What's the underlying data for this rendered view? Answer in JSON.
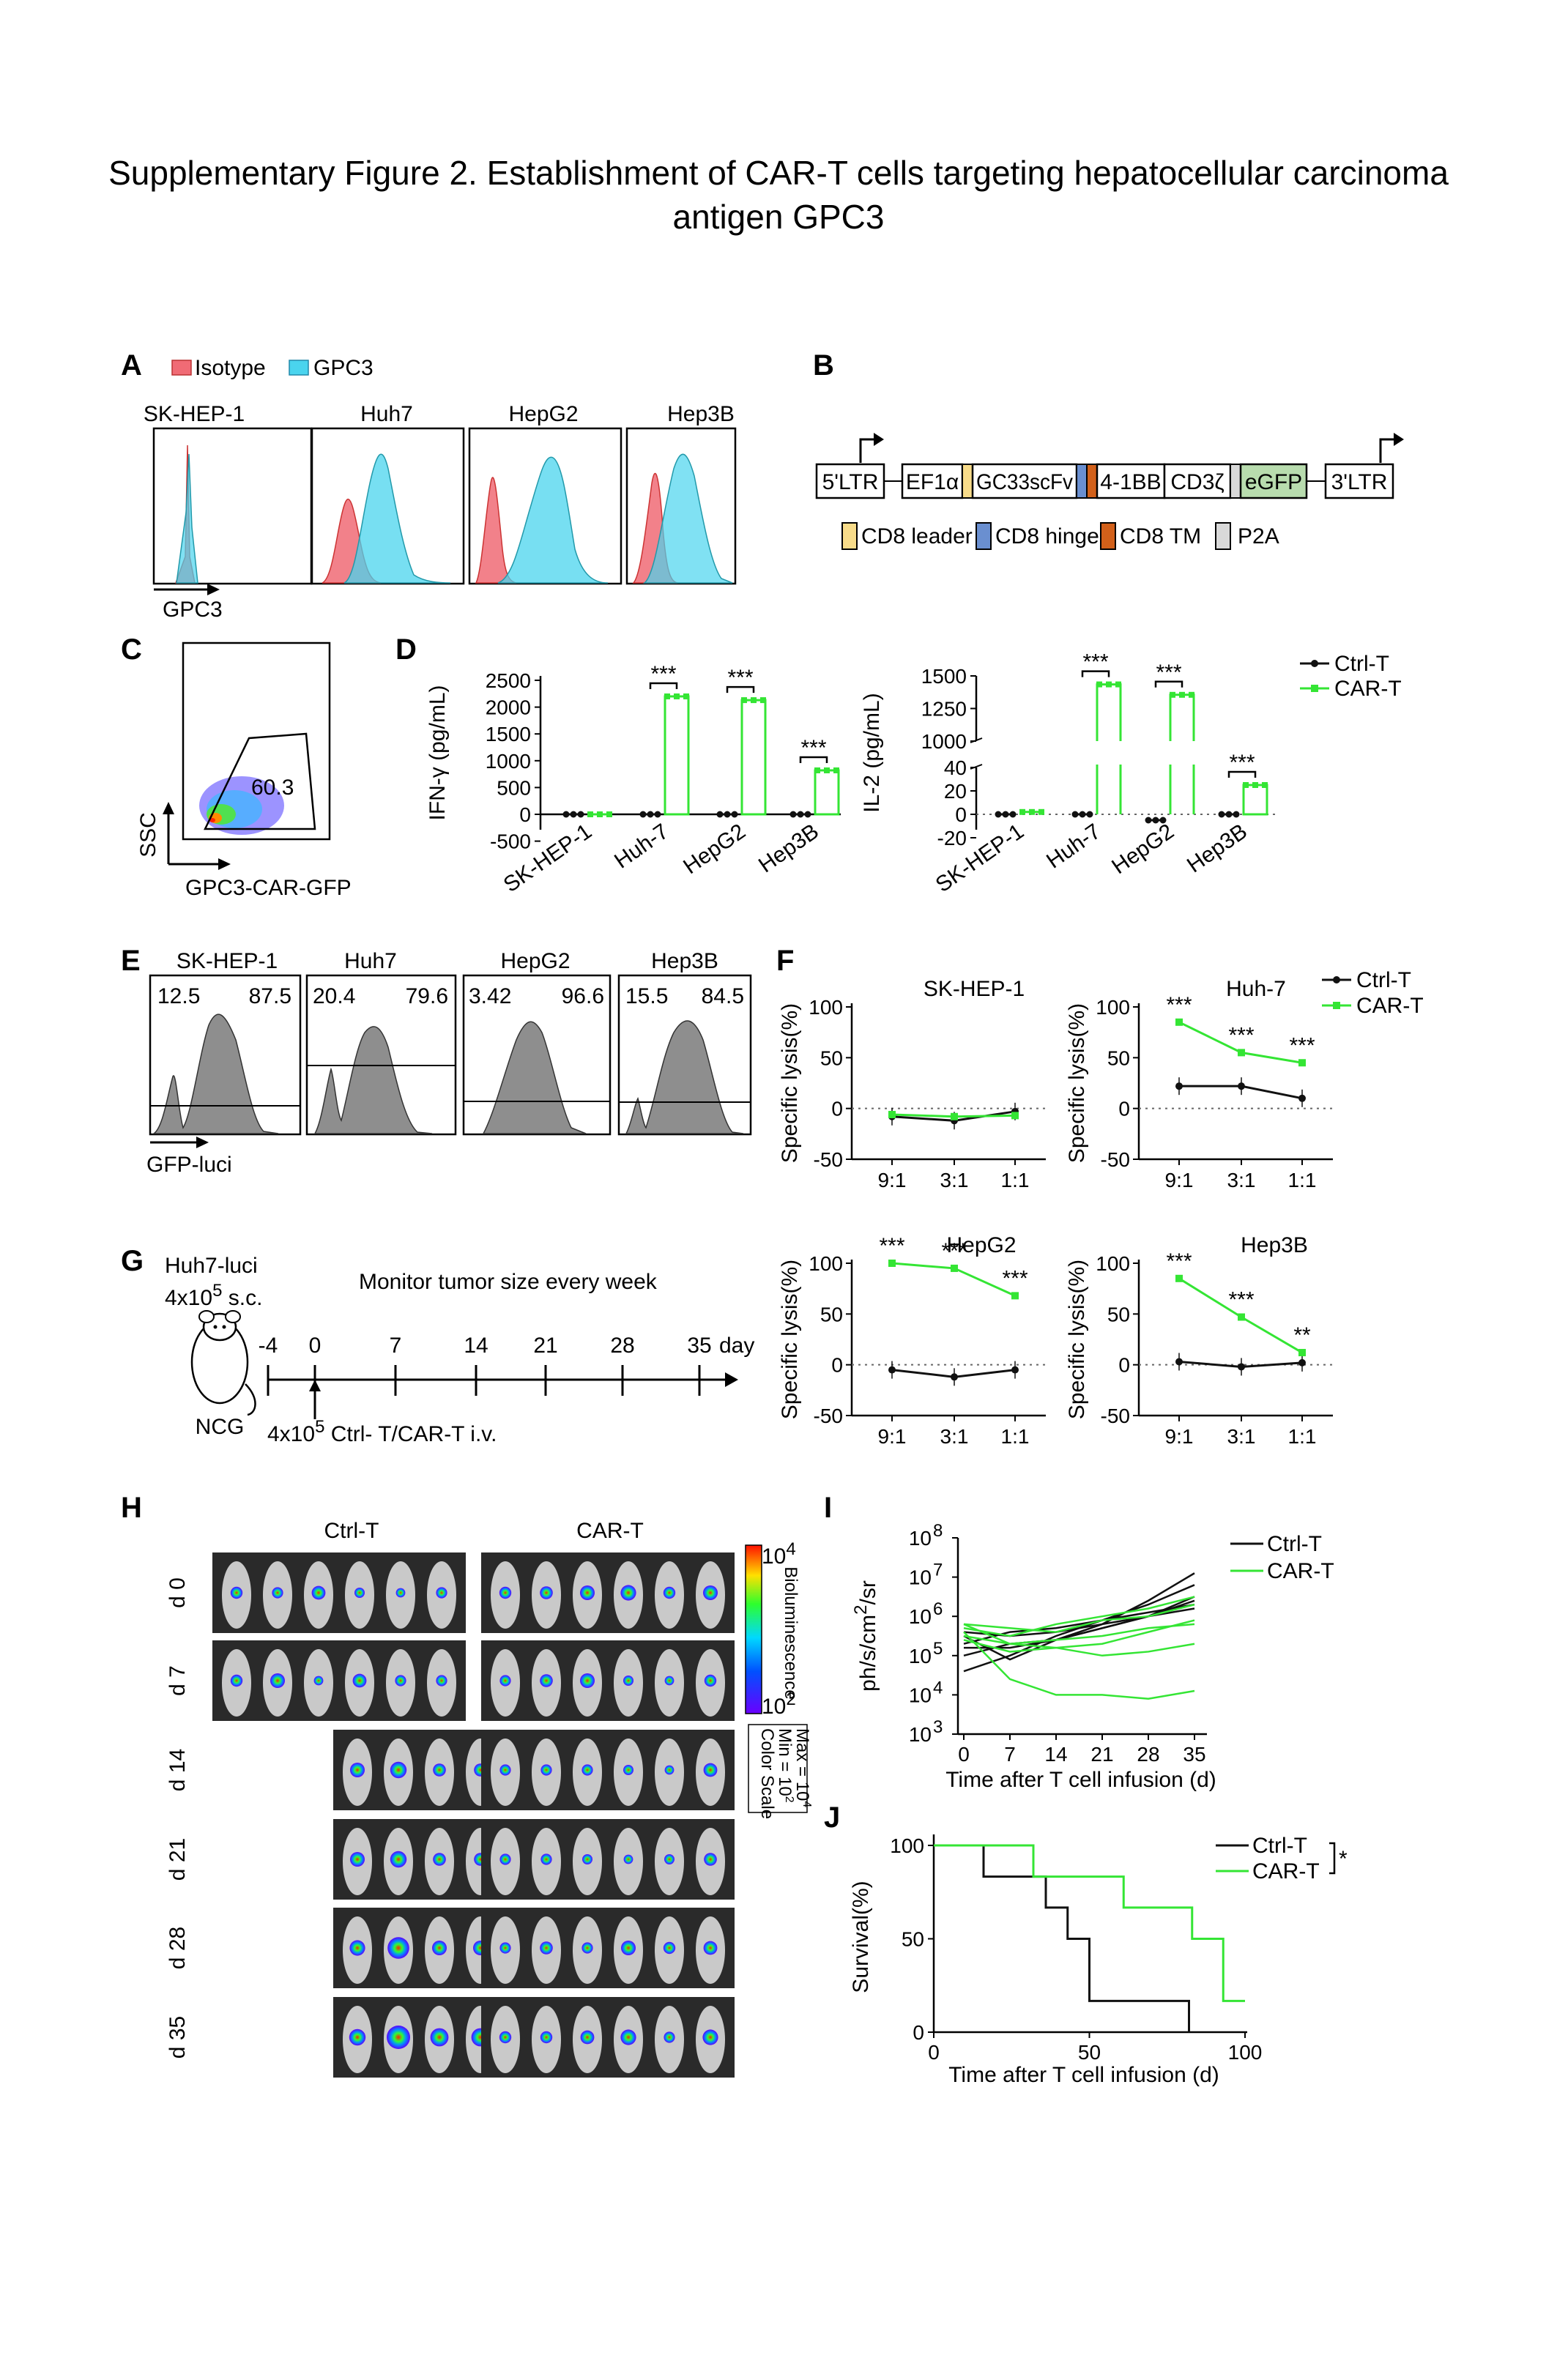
{
  "title_line1": "Supplementary Figure 2.  Establishment of CAR-T cells targeting hepatocellular carcinoma",
  "title_line2": "antigen GPC3",
  "colors": {
    "ctrl": "#111111",
    "car": "#34e534",
    "isotype": "#f06b75",
    "gpc3": "#4ad4ee"
  },
  "panel_a": {
    "letter": "A",
    "legend": [
      "Isotype",
      "GPC3"
    ],
    "samples": [
      "SK-HEP-1",
      "Huh7",
      "HepG2",
      "Hep3B"
    ],
    "axis": "GPC3"
  },
  "panel_b": {
    "letter": "B",
    "boxes": [
      "5'LTR",
      "EF1α",
      "GC33scFv",
      "4-1BB",
      "CD3ζ",
      "eGFP",
      "3'LTR"
    ],
    "legend": [
      "CD8 leader",
      "CD8 hinge",
      "CD8 TM",
      "P2A"
    ]
  },
  "panel_c": {
    "letter": "C",
    "gate": "60.3",
    "ylabel": "SSC",
    "xlabel": "GPC3-CAR-GFP"
  },
  "panel_d": {
    "letter": "D",
    "legend": [
      "Ctrl-T",
      "CAR-T"
    ],
    "sig": "***",
    "ifn_ylabel": "IFN-γ (pg/mL)",
    "ifn_ticks": [
      "2500",
      "2000",
      "1500",
      "1000",
      "500",
      "0",
      "-500"
    ],
    "il2_ylabel": "IL-2 (pg/mL)",
    "il2_upper_ticks": [
      "1500",
      "1250",
      "1000"
    ],
    "il2_lower_ticks": [
      "40",
      "20",
      "0",
      "-20"
    ]
  },
  "panel_e": {
    "letter": "E",
    "samples": [
      {
        "name": "SK-HEP-1",
        "neg": "12.5",
        "pos": "87.5"
      },
      {
        "name": "Huh7",
        "neg": "20.4",
        "pos": "79.6"
      },
      {
        "name": "HepG2",
        "neg": "3.42",
        "pos": "96.6"
      },
      {
        "name": "Hep3B",
        "neg": "15.5",
        "pos": "84.5"
      }
    ],
    "axis": "GFP-luci"
  },
  "panel_f": {
    "letter": "F",
    "legend": [
      "Ctrl-T",
      "CAR-T"
    ],
    "ylabel": "Specific lysis(%)",
    "yticks": [
      "100",
      "50",
      "0",
      "-50"
    ],
    "xticks": [
      "9:1",
      "3:1",
      "1:1"
    ],
    "sig_labels": {
      "huh7": [
        "***",
        "***",
        "***"
      ],
      "hepg2": [
        "***",
        "***",
        "***"
      ],
      "hep3b": [
        "***",
        "***",
        "**"
      ]
    }
  },
  "panel_g": {
    "letter": "G",
    "cells_line1": "Huh7-luci",
    "cells_line2_base": "4x10",
    "cells_line2_exp": "5",
    "cells_line2_tail": " s.c.",
    "monitor": "Monitor  tumor size every week",
    "days": [
      "-4",
      "0",
      "7",
      "14",
      "21",
      "28",
      "35"
    ],
    "day_unit": "day",
    "mouse": "NCG",
    "infusion_base": "4x10",
    "infusion_exp": "5",
    "infusion_tail": " Ctrl- T/CAR-T i.v."
  },
  "panel_h": {
    "letter": "H",
    "groups": [
      "Ctrl-T",
      "CAR-T"
    ],
    "days": [
      "d 0",
      "d 7",
      "d 14",
      "d 21",
      "d 28",
      "d 35"
    ],
    "scale_top_base": "10",
    "scale_top_exp": "4",
    "scale_bottom_base": "10",
    "scale_bottom_exp": "2",
    "scale_label": "Bioluminescence",
    "color_scale": [
      "Color Scale",
      "Min = 10",
      "Max = 10"
    ]
  },
  "panel_i": {
    "letter": "I",
    "legend": [
      "Ctrl-T",
      "CAR-T"
    ],
    "ylabel_base": "ph/s/cm",
    "ylabel_exp": "2",
    "ylabel_tail": "/sr",
    "yexp": [
      "8",
      "7",
      "6",
      "5",
      "4",
      "3"
    ],
    "ybase": "10",
    "xticks": [
      "0",
      "7",
      "14",
      "21",
      "28",
      "35"
    ],
    "xlabel": "Time after T cell infusion (d)"
  },
  "panel_j": {
    "letter": "J",
    "legend": [
      "Ctrl-T",
      "CAR-T"
    ],
    "sig": "*",
    "ylabel": "Survival(%)",
    "yticks": [
      "100",
      "50",
      "0"
    ],
    "xticks": [
      "0",
      "50",
      "100"
    ],
    "xlabel": "Time after T cell infusion (d)"
  },
  "chart_data": [
    {
      "id": "D-IFN",
      "type": "bar",
      "title": "",
      "ylabel": "IFN-γ (pg/mL)",
      "xlabel": "",
      "categories": [
        "SK-HEP-1",
        "Huh-7",
        "HepG2",
        "Hep3B"
      ],
      "series": [
        {
          "name": "Ctrl-T",
          "values": [
            0,
            0,
            0,
            0
          ]
        },
        {
          "name": "CAR-T",
          "values": [
            0,
            2200,
            2130,
            820
          ]
        }
      ],
      "ylim": [
        -500,
        2500
      ]
    },
    {
      "id": "D-IL2",
      "type": "bar",
      "title": "",
      "ylabel": "IL-2 (pg/mL)",
      "xlabel": "",
      "categories": [
        "SK-HEP-1",
        "Huh-7",
        "HepG2",
        "Hep3B"
      ],
      "series": [
        {
          "name": "Ctrl-T",
          "values": [
            0,
            0,
            -5,
            0
          ]
        },
        {
          "name": "CAR-T",
          "values": [
            2,
            1435,
            1355,
            25
          ]
        }
      ],
      "ylim": [
        -20,
        1500
      ],
      "axis_break": [
        40,
        1000
      ]
    },
    {
      "id": "F-SK-HEP-1",
      "type": "line",
      "title": "SK-HEP-1",
      "ylabel": "Specific lysis(%)",
      "xlabel": "",
      "categories": [
        "9:1",
        "3:1",
        "1:1"
      ],
      "series": [
        {
          "name": "Ctrl-T",
          "values": [
            -8,
            -12,
            -3
          ]
        },
        {
          "name": "CAR-T",
          "values": [
            -6,
            -8,
            -7
          ]
        }
      ],
      "ylim": [
        -50,
        100
      ]
    },
    {
      "id": "F-Huh-7",
      "type": "line",
      "title": "Huh-7",
      "ylabel": "Specific lysis(%)",
      "xlabel": "",
      "categories": [
        "9:1",
        "3:1",
        "1:1"
      ],
      "series": [
        {
          "name": "Ctrl-T",
          "values": [
            22,
            22,
            10
          ]
        },
        {
          "name": "CAR-T",
          "values": [
            85,
            55,
            45
          ]
        }
      ],
      "ylim": [
        -50,
        100
      ]
    },
    {
      "id": "F-HepG2",
      "type": "line",
      "title": "HepG2",
      "ylabel": "Specific lysis(%)",
      "xlabel": "",
      "categories": [
        "9:1",
        "3:1",
        "1:1"
      ],
      "series": [
        {
          "name": "Ctrl-T",
          "values": [
            -5,
            -12,
            -5
          ]
        },
        {
          "name": "CAR-T",
          "values": [
            100,
            95,
            68
          ]
        }
      ],
      "ylim": [
        -50,
        100
      ]
    },
    {
      "id": "F-Hep3B",
      "type": "line",
      "title": "Hep3B",
      "ylabel": "Specific lysis(%)",
      "xlabel": "",
      "categories": [
        "9:1",
        "3:1",
        "1:1"
      ],
      "series": [
        {
          "name": "Ctrl-T",
          "values": [
            3,
            -2,
            2
          ]
        },
        {
          "name": "CAR-T",
          "values": [
            85,
            47,
            12
          ]
        }
      ],
      "ylim": [
        -50,
        100
      ]
    },
    {
      "id": "I",
      "type": "line",
      "title": "",
      "ylabel": "ph/s/cm2/sr",
      "xlabel": "Time after T cell infusion (d)",
      "x": [
        0,
        7,
        14,
        21,
        28,
        35
      ],
      "yscale": "log",
      "ylim_log10": [
        3,
        8
      ],
      "series": [
        {
          "name": "Ctrl-T",
          "log10_values": [
            [
              5.2,
              5.2,
              5.4,
              5.8,
              6.4,
              7.1
            ],
            [
              4.6,
              5.0,
              5.5,
              5.9,
              6.3,
              6.8
            ],
            [
              5.0,
              5.3,
              5.4,
              5.7,
              6.0,
              6.5
            ],
            [
              5.5,
              4.9,
              5.4,
              5.7,
              6.0,
              6.4
            ],
            [
              5.3,
              5.6,
              5.7,
              5.9,
              6.1,
              6.3
            ],
            [
              5.6,
              5.5,
              5.6,
              5.8,
              6.0,
              6.2
            ]
          ]
        },
        {
          "name": "CAR-T",
          "log10_values": [
            [
              5.7,
              5.5,
              5.8,
              6.0,
              6.2,
              6.5
            ],
            [
              5.8,
              5.7,
              5.6,
              5.9,
              6.0,
              6.3
            ],
            [
              5.5,
              5.3,
              5.4,
              5.5,
              5.7,
              5.8
            ],
            [
              5.8,
              5.3,
              5.2,
              5.0,
              5.1,
              5.3
            ],
            [
              5.6,
              4.4,
              4.0,
              4.0,
              3.9,
              4.1
            ],
            [
              5.4,
              5.1,
              5.2,
              5.3,
              5.6,
              5.9
            ]
          ]
        }
      ]
    },
    {
      "id": "J",
      "type": "line",
      "title": "",
      "ylabel": "Survival(%)",
      "xlabel": "Time after T cell infusion (d)",
      "xlim": [
        0,
        100
      ],
      "ylim": [
        0,
        100
      ],
      "step": true,
      "series": [
        {
          "name": "Ctrl-T",
          "x": [
            0,
            16,
            16,
            36,
            36,
            43,
            43,
            50,
            50,
            82,
            82
          ],
          "y": [
            100,
            100,
            83.3,
            83.3,
            66.7,
            66.7,
            50,
            50,
            16.7,
            16.7,
            0
          ]
        },
        {
          "name": "CAR-T",
          "x": [
            0,
            32,
            32,
            61,
            61,
            83,
            83,
            93,
            93,
            100
          ],
          "y": [
            100,
            100,
            83.3,
            83.3,
            66.7,
            66.7,
            50,
            50,
            16.7,
            16.7
          ]
        }
      ]
    }
  ]
}
